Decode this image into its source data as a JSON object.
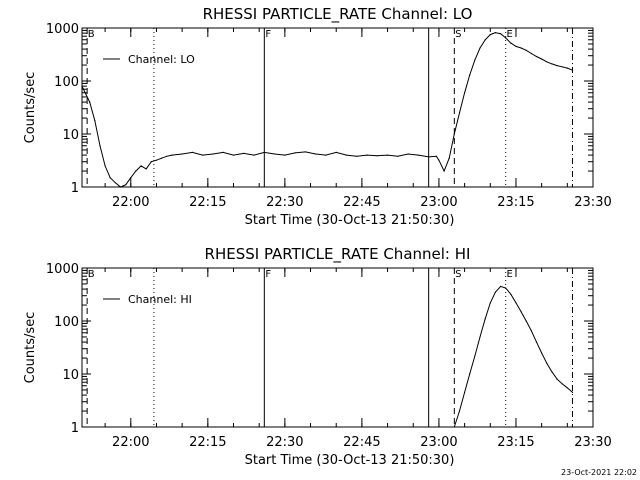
{
  "chart_data": [
    {
      "type": "line",
      "title": "RHESSI PARTICLE_RATE Channel: LO",
      "xlabel": "Start Time (30-Oct-13 21:50:30)",
      "ylabel": "Counts/sec",
      "x_ticks": [
        "22:00",
        "22:15",
        "22:30",
        "22:45",
        "23:00",
        "23:15",
        "23:30"
      ],
      "y_ticks": [
        "1",
        "10",
        "100",
        "1000"
      ],
      "y_scale": "log",
      "xlim": [
        "21:50:30",
        "23:30:00"
      ],
      "ylim": [
        1,
        1000
      ],
      "grid": false,
      "legend_position": "top-left",
      "series": [
        {
          "name": "Channel: LO",
          "x": [
            "21:50:30",
            "21:52:00",
            "21:53:00",
            "21:54:00",
            "21:55:00",
            "21:56:00",
            "21:57:00",
            "21:58:00",
            "21:59:00",
            "22:00:00",
            "22:01:00",
            "22:02:00",
            "22:03:00",
            "22:04:00",
            "22:05:00",
            "22:06:00",
            "22:07:00",
            "22:08:00",
            "22:10:00",
            "22:12:00",
            "22:14:00",
            "22:16:00",
            "22:18:00",
            "22:20:00",
            "22:22:00",
            "22:24:00",
            "22:26:00",
            "22:28:00",
            "22:30:00",
            "22:32:00",
            "22:34:00",
            "22:36:00",
            "22:38:00",
            "22:40:00",
            "22:42:00",
            "22:44:00",
            "22:46:00",
            "22:48:00",
            "22:50:00",
            "22:52:00",
            "22:54:00",
            "22:56:00",
            "22:58:00",
            "22:59:30",
            "23:00:00",
            "23:01:00",
            "23:02:00",
            "23:03:00",
            "23:04:00",
            "23:05:00",
            "23:06:00",
            "23:07:00",
            "23:08:00",
            "23:09:00",
            "23:10:00",
            "23:11:00",
            "23:12:00",
            "23:13:00",
            "23:14:00",
            "23:15:00",
            "23:16:00",
            "23:17:00",
            "23:18:00",
            "23:19:00",
            "23:20:00",
            "23:21:00",
            "23:22:00",
            "23:23:00",
            "23:24:00",
            "23:25:00",
            "23:26:00"
          ],
          "values": [
            80,
            40,
            18,
            6,
            2.5,
            1.5,
            1.2,
            1,
            1.1,
            1.5,
            2,
            2.5,
            2.2,
            3,
            3.2,
            3.5,
            3.8,
            4,
            4.2,
            4.5,
            4,
            4.2,
            4.5,
            4,
            4.3,
            4,
            4.5,
            4.2,
            4,
            4.4,
            4.6,
            4.2,
            4,
            4.5,
            4,
            3.8,
            4,
            3.9,
            4,
            3.8,
            4.2,
            4,
            3.7,
            3.8,
            3.2,
            2,
            3.5,
            10,
            25,
            60,
            130,
            250,
            420,
            600,
            750,
            820,
            780,
            650,
            520,
            450,
            420,
            380,
            330,
            290,
            260,
            230,
            210,
            195,
            185,
            175,
            160
          ]
        }
      ],
      "markers": [
        {
          "label": "B",
          "time": "21:51:30",
          "style": "dashed"
        },
        {
          "label": "",
          "time": "22:04:30",
          "style": "dotted"
        },
        {
          "label": "F",
          "time": "22:26:00",
          "style": "solid"
        },
        {
          "label": "",
          "time": "22:58:00",
          "style": "solid"
        },
        {
          "label": "S",
          "time": "23:03:00",
          "style": "dashed"
        },
        {
          "label": "E",
          "time": "23:13:00",
          "style": "dotted"
        },
        {
          "label": "",
          "time": "23:26:00",
          "style": "dashdot"
        }
      ]
    },
    {
      "type": "line",
      "title": "RHESSI PARTICLE_RATE Channel: HI",
      "xlabel": "Start Time (30-Oct-13 21:50:30)",
      "ylabel": "Counts/sec",
      "x_ticks": [
        "22:00",
        "22:15",
        "22:30",
        "22:45",
        "23:00",
        "23:15",
        "23:30"
      ],
      "y_ticks": [
        "1",
        "10",
        "100",
        "1000"
      ],
      "y_scale": "log",
      "xlim": [
        "21:50:30",
        "23:30:00"
      ],
      "ylim": [
        1,
        1000
      ],
      "grid": false,
      "legend_position": "top-left",
      "series": [
        {
          "name": "Channel: HI",
          "x": [
            "23:03:00",
            "23:04:00",
            "23:05:00",
            "23:06:00",
            "23:07:00",
            "23:08:00",
            "23:09:00",
            "23:10:00",
            "23:11:00",
            "23:12:00",
            "23:13:00",
            "23:14:00",
            "23:15:00",
            "23:16:00",
            "23:17:00",
            "23:18:00",
            "23:19:00",
            "23:20:00",
            "23:21:00",
            "23:22:00",
            "23:23:00",
            "23:24:00",
            "23:25:00",
            "23:26:00"
          ],
          "values": [
            1,
            2,
            4.5,
            10,
            22,
            50,
            110,
            220,
            350,
            450,
            420,
            320,
            220,
            150,
            100,
            65,
            40,
            25,
            16,
            11,
            8,
            6.5,
            5.5,
            4.5
          ]
        }
      ],
      "markers": [
        {
          "label": "B",
          "time": "21:51:30",
          "style": "dashed"
        },
        {
          "label": "",
          "time": "22:04:30",
          "style": "dotted"
        },
        {
          "label": "F",
          "time": "22:26:00",
          "style": "solid"
        },
        {
          "label": "",
          "time": "22:58:00",
          "style": "solid"
        },
        {
          "label": "S",
          "time": "23:03:00",
          "style": "dashed"
        },
        {
          "label": "E",
          "time": "23:13:00",
          "style": "dotted"
        },
        {
          "label": "",
          "time": "23:26:00",
          "style": "dashdot"
        }
      ]
    }
  ],
  "footer": {
    "timestamp": "23-Oct-2021 22:02"
  }
}
